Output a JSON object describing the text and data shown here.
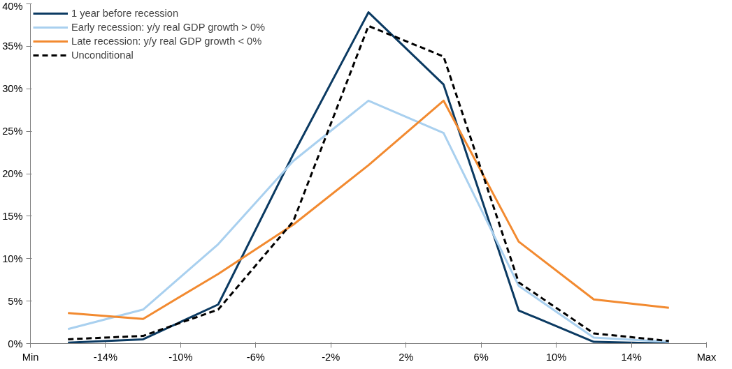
{
  "chart_data": {
    "type": "line",
    "x": [
      -16,
      -12,
      -8,
      -4,
      0,
      4,
      8,
      12,
      16
    ],
    "xlim": [
      -18,
      18
    ],
    "xticks": [
      {
        "value": -18,
        "label": "Min"
      },
      {
        "value": -14,
        "label": "-14%"
      },
      {
        "value": -10,
        "label": "-10%"
      },
      {
        "value": -6,
        "label": "-6%"
      },
      {
        "value": -2,
        "label": "-2%"
      },
      {
        "value": 2,
        "label": "2%"
      },
      {
        "value": 6,
        "label": "6%"
      },
      {
        "value": 10,
        "label": "10%"
      },
      {
        "value": 14,
        "label": "14%"
      },
      {
        "value": 18,
        "label": "Max"
      }
    ],
    "ylim": [
      0,
      40
    ],
    "yticks": [
      {
        "value": 0,
        "label": "0%"
      },
      {
        "value": 5,
        "label": "5%"
      },
      {
        "value": 10,
        "label": "10%"
      },
      {
        "value": 15,
        "label": "15%"
      },
      {
        "value": 20,
        "label": "20%"
      },
      {
        "value": 25,
        "label": "25%"
      },
      {
        "value": 30,
        "label": "30%"
      },
      {
        "value": 35,
        "label": "35%"
      },
      {
        "value": 40,
        "label": "40%"
      }
    ],
    "grid": false,
    "legend": "top left",
    "marker": "none",
    "line_style": "solid",
    "series": [
      {
        "name": "1 year before recession",
        "color": "#0b3a62",
        "values": [
          0.1,
          0.5,
          4.6,
          22.3,
          39.0,
          30.5,
          3.9,
          0.2,
          0.0
        ]
      },
      {
        "name": "Early recession: y/y real GDP growth > 0%",
        "color": "#a9d0ef",
        "values": [
          1.7,
          4.0,
          11.7,
          21.5,
          28.6,
          24.8,
          6.8,
          0.7,
          0.2
        ]
      },
      {
        "name": "Late recession: y/y real GDP growth < 0%",
        "color": "#f28a30",
        "values": [
          3.6,
          2.9,
          8.2,
          14.0,
          21.0,
          28.6,
          12.0,
          5.2,
          4.2
        ]
      },
      {
        "name": "Unconditional",
        "color": "#000000",
        "line_style": "dashed",
        "values": [
          0.5,
          0.9,
          4.0,
          14.4,
          37.4,
          33.8,
          7.2,
          1.2,
          0.3
        ]
      }
    ]
  }
}
